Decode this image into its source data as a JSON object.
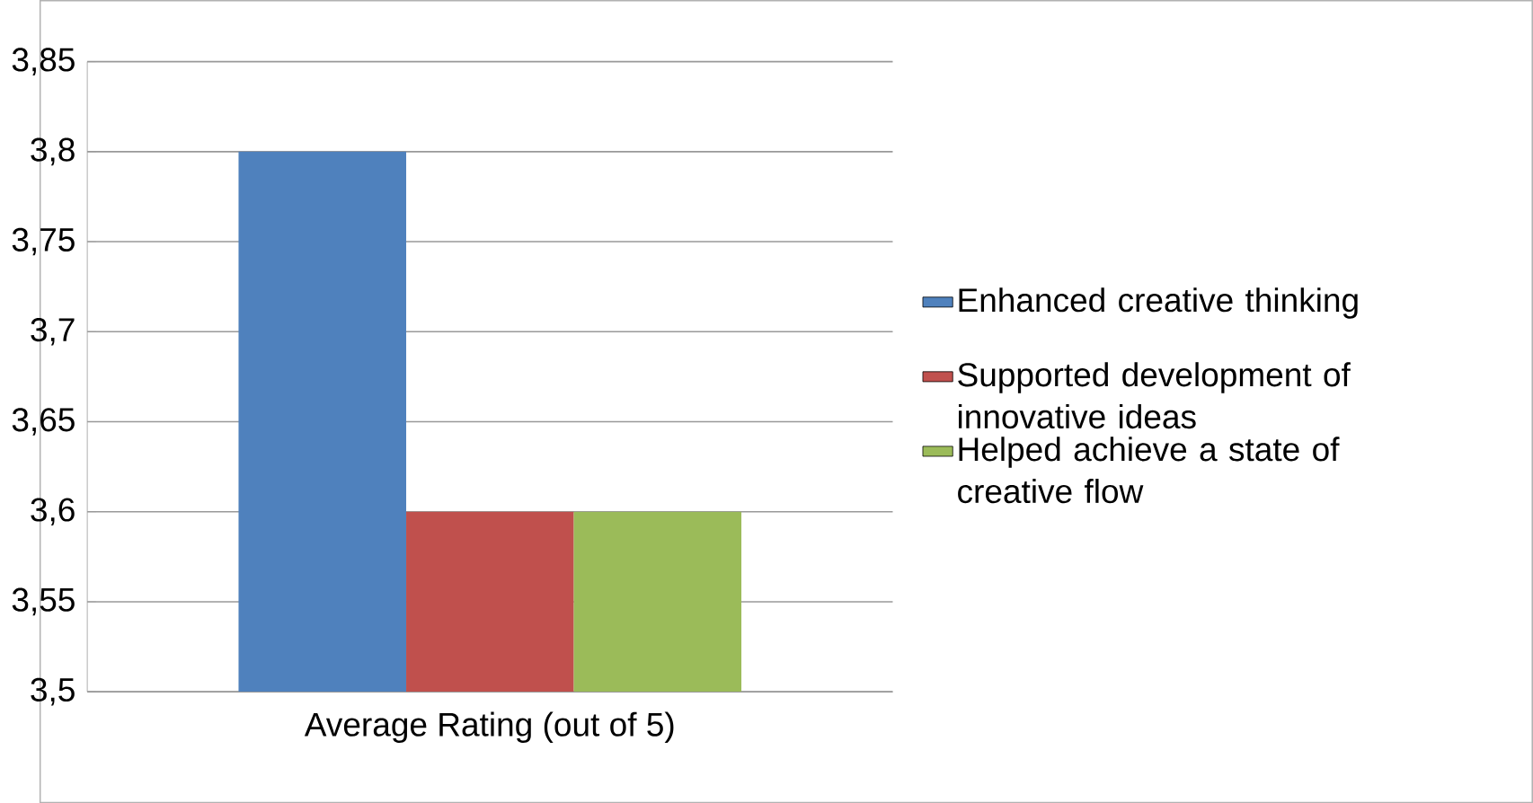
{
  "chart_data": {
    "type": "bar",
    "categories": [
      "Average Rating (out of 5)"
    ],
    "series": [
      {
        "name": "Enhanced creative thinking",
        "color": "#4f81bd",
        "values": [
          3.8
        ]
      },
      {
        "name": "Supported development of innovative ideas",
        "color": "#c0504d",
        "values": [
          3.6
        ]
      },
      {
        "name": "Helped achieve a state of creative flow",
        "color": "#9bbb59",
        "values": [
          3.6
        ]
      }
    ],
    "ylim": [
      3.5,
      3.85
    ],
    "yticks": [
      {
        "value": 3.5,
        "label": "3,5"
      },
      {
        "value": 3.55,
        "label": "3,55"
      },
      {
        "value": 3.6,
        "label": "3,6"
      },
      {
        "value": 3.65,
        "label": "3,65"
      },
      {
        "value": 3.7,
        "label": "3,7"
      },
      {
        "value": 3.75,
        "label": "3,75"
      },
      {
        "value": 3.8,
        "label": "3,8"
      },
      {
        "value": 3.85,
        "label": "3,85"
      }
    ],
    "grid": "y",
    "legend": "right"
  }
}
